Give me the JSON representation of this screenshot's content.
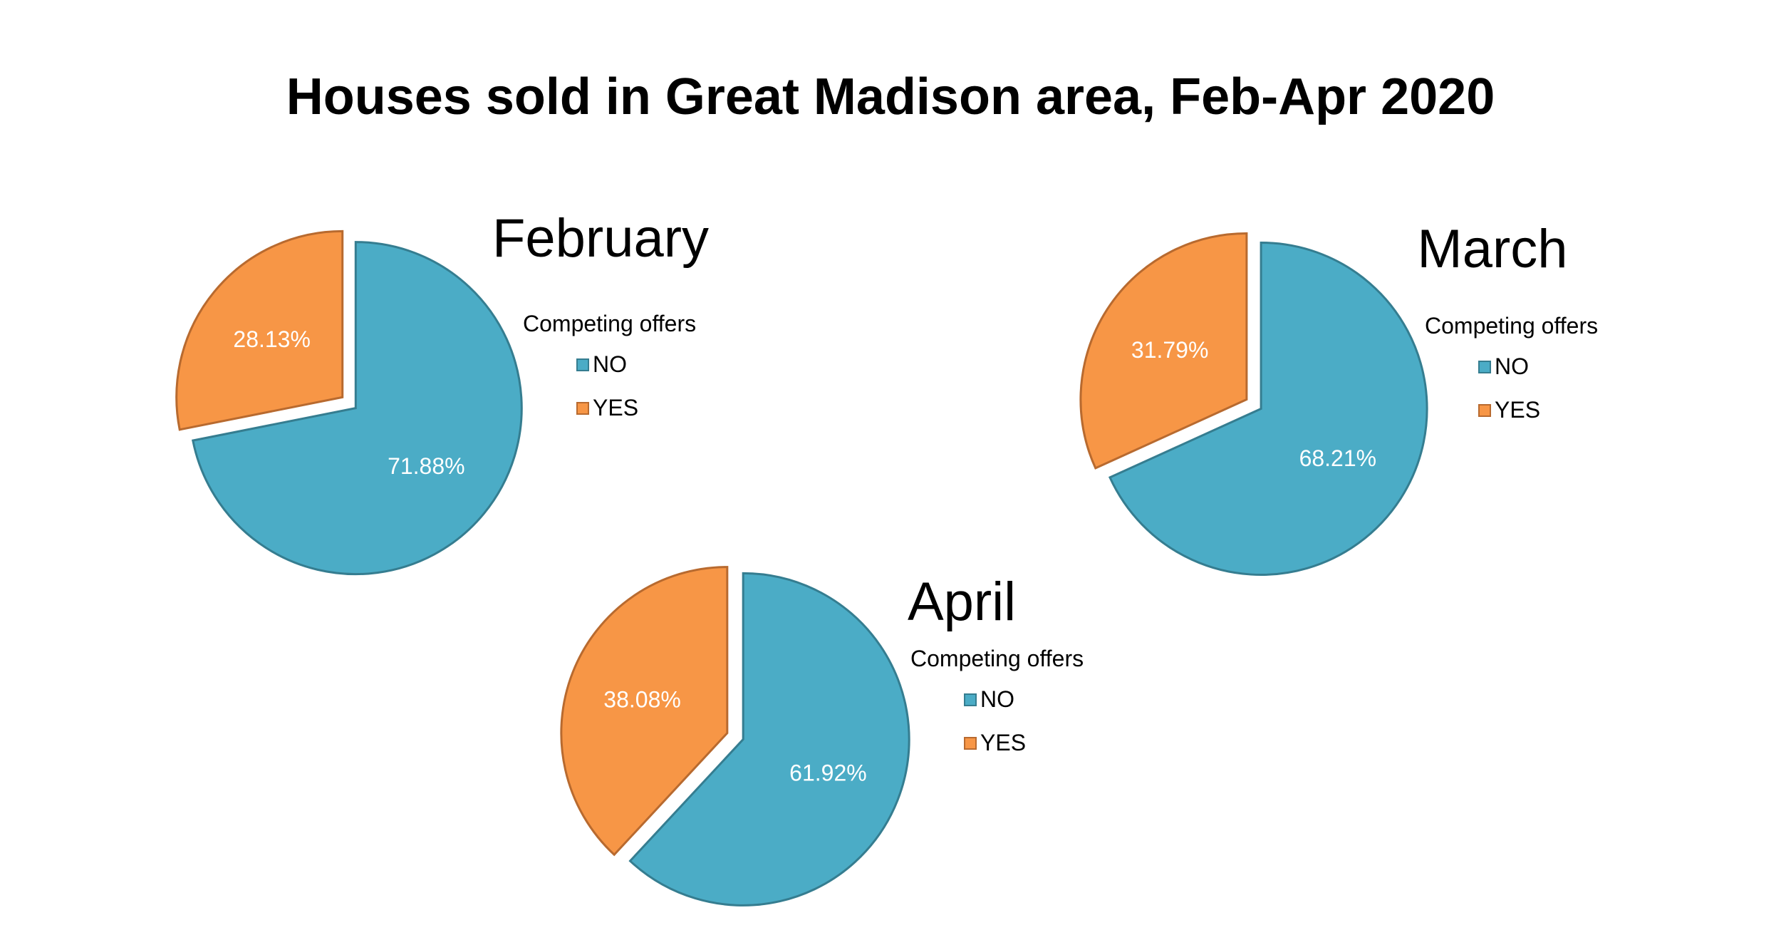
{
  "chart_data": {
    "type": "pie",
    "title": "Houses sold in Great Madison area, Feb-Apr 2020",
    "colors": {
      "NO": "#4BACC6",
      "YES": "#F79646",
      "NO_border": "#357D90",
      "YES_border": "#B86A2F"
    },
    "legend_position": "right",
    "charts": [
      {
        "title": "February",
        "legend_title": "Competing offers",
        "slices": [
          {
            "label": "NO",
            "value": 71.88,
            "data_label": "71.88%"
          },
          {
            "label": "YES",
            "value": 28.13,
            "data_label": "28.13%"
          }
        ]
      },
      {
        "title": "March",
        "legend_title": "Competing offers",
        "slices": [
          {
            "label": "NO",
            "value": 68.21,
            "data_label": "68.21%"
          },
          {
            "label": "YES",
            "value": 31.79,
            "data_label": "31.79%"
          }
        ]
      },
      {
        "title": "April",
        "legend_title": "Competing offers",
        "slices": [
          {
            "label": "NO",
            "value": 61.92,
            "data_label": "61.92%"
          },
          {
            "label": "YES",
            "value": 38.08,
            "data_label": "38.08%"
          }
        ]
      }
    ]
  }
}
